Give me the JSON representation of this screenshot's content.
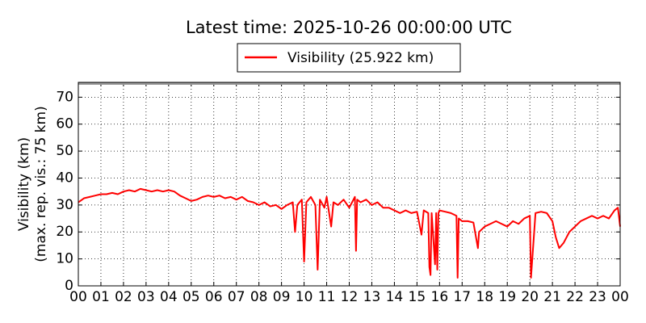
{
  "chart_data": {
    "type": "line",
    "title": "Latest time: 2025-10-26 00:00:00 UTC",
    "ylabel": [
      "Visibility (km)",
      "(max. rep. vis.: 75 km)"
    ],
    "xlim": [
      0,
      24
    ],
    "ylim": [
      0,
      75.5
    ],
    "xticks": [
      {
        "value": 0,
        "label": "00"
      },
      {
        "value": 1,
        "label": "01"
      },
      {
        "value": 2,
        "label": "02"
      },
      {
        "value": 3,
        "label": "03"
      },
      {
        "value": 4,
        "label": "04"
      },
      {
        "value": 5,
        "label": "05"
      },
      {
        "value": 6,
        "label": "06"
      },
      {
        "value": 7,
        "label": "07"
      },
      {
        "value": 8,
        "label": "08"
      },
      {
        "value": 9,
        "label": "09"
      },
      {
        "value": 10,
        "label": "10"
      },
      {
        "value": 11,
        "label": "11"
      },
      {
        "value": 12,
        "label": "12"
      },
      {
        "value": 13,
        "label": "13"
      },
      {
        "value": 14,
        "label": "14"
      },
      {
        "value": 15,
        "label": "15"
      },
      {
        "value": 16,
        "label": "16"
      },
      {
        "value": 17,
        "label": "17"
      },
      {
        "value": 18,
        "label": "18"
      },
      {
        "value": 19,
        "label": "19"
      },
      {
        "value": 20,
        "label": "20"
      },
      {
        "value": 21,
        "label": "21"
      },
      {
        "value": 22,
        "label": "22"
      },
      {
        "value": 23,
        "label": "23"
      },
      {
        "value": 24,
        "label": "00"
      }
    ],
    "yticks": [
      0,
      10,
      20,
      30,
      40,
      50,
      60,
      70
    ],
    "grid": true,
    "legend": "top",
    "x": [
      0,
      0.25,
      0.5,
      0.75,
      1,
      1.25,
      1.5,
      1.75,
      2,
      2.25,
      2.5,
      2.75,
      3,
      3.25,
      3.5,
      3.75,
      4,
      4.25,
      4.5,
      4.75,
      5,
      5.25,
      5.5,
      5.75,
      6,
      6.25,
      6.5,
      6.75,
      7,
      7.25,
      7.5,
      7.75,
      8,
      8.25,
      8.5,
      8.75,
      9,
      9.25,
      9.5,
      9.6,
      9.7,
      9.9,
      10,
      10.1,
      10.3,
      10.5,
      10.6,
      10.7,
      10.9,
      11,
      11.2,
      11.3,
      11.5,
      11.75,
      12,
      12.25,
      12.3,
      12.35,
      12.5,
      12.75,
      13,
      13.25,
      13.5,
      13.75,
      14,
      14.25,
      14.5,
      14.75,
      15,
      15.2,
      15.3,
      15.5,
      15.55,
      15.6,
      15.65,
      15.8,
      15.85,
      15.9,
      15.95,
      16,
      16.25,
      16.5,
      16.75,
      16.8,
      16.85,
      17,
      17.25,
      17.5,
      17.7,
      17.75,
      18,
      18.25,
      18.5,
      18.75,
      19,
      19.25,
      19.5,
      19.75,
      20,
      20.05,
      20.25,
      20.5,
      20.75,
      21,
      21.15,
      21.3,
      21.5,
      21.75,
      22,
      22.25,
      22.5,
      22.75,
      23,
      23.25,
      23.5,
      23.75,
      23.9,
      24
    ],
    "series": [
      {
        "name": "Visibility (25.922 km)",
        "color": "#ff0000",
        "values": [
          31,
          32.5,
          33,
          33.5,
          34,
          34,
          34.5,
          34,
          35,
          35.5,
          35,
          36,
          35.5,
          35,
          35.5,
          35,
          35.5,
          35,
          33.5,
          32.5,
          31.5,
          32,
          33,
          33.5,
          33,
          33.5,
          32.5,
          33,
          32,
          33,
          31.5,
          31,
          30,
          31,
          29.5,
          30,
          28.5,
          30,
          31,
          20,
          30,
          32,
          9,
          31,
          33,
          30,
          6,
          32,
          29,
          33,
          22,
          31,
          30,
          32,
          29,
          33,
          13,
          32,
          31,
          32,
          30,
          31,
          29,
          29,
          28,
          27,
          28,
          27,
          27.5,
          19,
          28,
          27,
          7,
          4,
          27,
          8,
          27,
          6,
          27,
          28,
          27.5,
          27,
          26,
          3,
          25,
          24,
          24,
          23.5,
          14,
          20,
          22,
          23,
          24,
          23,
          22,
          24,
          23,
          25,
          26,
          3,
          27,
          27.5,
          27,
          24,
          18,
          14,
          16,
          20,
          22,
          24,
          25,
          26,
          25,
          26,
          25,
          28,
          29,
          22
        ]
      }
    ]
  }
}
